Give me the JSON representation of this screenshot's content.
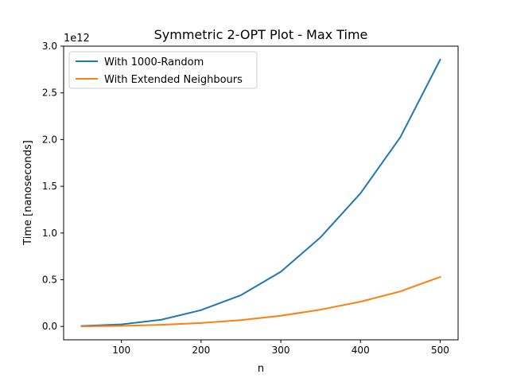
{
  "chart_data": {
    "type": "line",
    "title": "Symmetric 2-OPT Plot - Max Time",
    "xlabel": "n",
    "ylabel": "Time [nanoseconds]",
    "y_offset_label": "1e12",
    "xlim": [
      27.5,
      522.5
    ],
    "ylim": [
      -0.143,
      3.0
    ],
    "x_ticks": [
      100,
      200,
      300,
      400,
      500
    ],
    "x_tick_labels": [
      "100",
      "200",
      "300",
      "400",
      "500"
    ],
    "y_ticks": [
      0.0,
      0.5,
      1.0,
      1.5,
      2.0,
      2.5,
      3.0
    ],
    "y_tick_labels": [
      "0.0",
      "0.5",
      "1.0",
      "1.5",
      "2.0",
      "2.5",
      "3.0"
    ],
    "grid": false,
    "legend_position": "upper-left",
    "x": [
      50,
      100,
      150,
      200,
      250,
      300,
      350,
      400,
      450,
      500
    ],
    "series": [
      {
        "name": "With 1000-Random",
        "color": "#1f77b4",
        "values": [
          0.005,
          0.022,
          0.072,
          0.175,
          0.335,
          0.585,
          0.955,
          1.425,
          2.025,
          2.855
        ]
      },
      {
        "name": "With Extended Neighbours",
        "color": "#ff7f0e",
        "values": [
          0.001,
          0.006,
          0.018,
          0.037,
          0.068,
          0.115,
          0.18,
          0.265,
          0.375,
          0.53
        ]
      }
    ]
  }
}
